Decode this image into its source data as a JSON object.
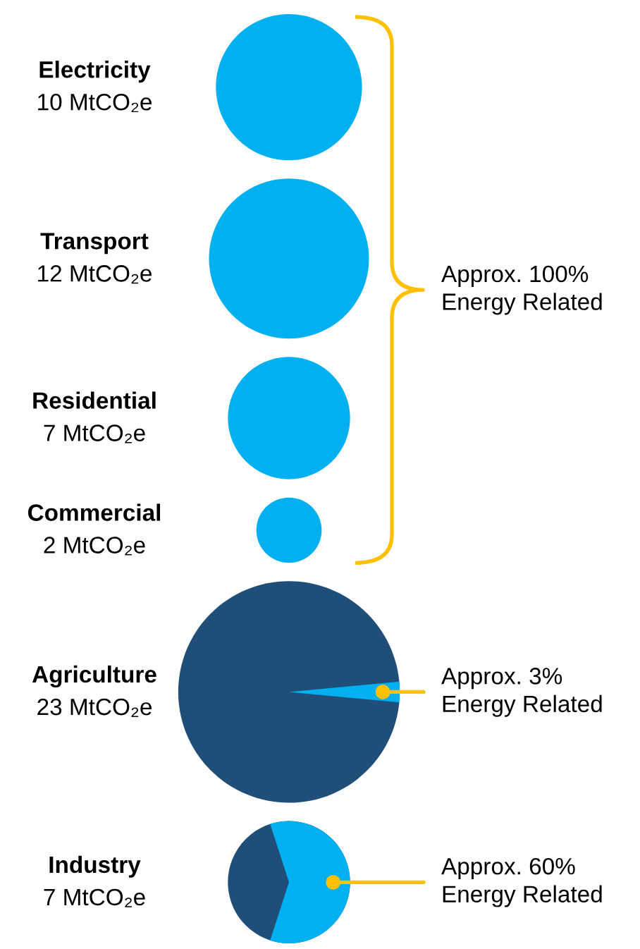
{
  "chart_data": {
    "type": "other",
    "categories": [
      "Electricity",
      "Transport",
      "Residential",
      "Commercial",
      "Agriculture",
      "Industry"
    ],
    "values": [
      10,
      12,
      7,
      2,
      23,
      7
    ],
    "value_labels": [
      "10 MtCO₂e",
      "12 MtCO₂e",
      "7 MtCO₂e",
      "2 MtCO₂e",
      "23 MtCO₂e",
      "7 MtCO₂e"
    ],
    "colors": [
      "#00b0f0",
      "#00b0f0",
      "#00b0f0",
      "#00b0f0",
      "#1f4e79",
      "#1f4e79"
    ],
    "series": [
      {
        "color": "#00b0f0",
        "values": [
          null,
          null,
          null,
          null,
          3,
          60
        ],
        "value_labels": [
          null,
          null,
          null,
          null,
          "Approx. 3%\nEnergy Related",
          "Approx. 60%\nEnergy Related"
        ]
      }
    ],
    "annotations": [
      "Approx. 100%\nEnergy Related"
    ]
  }
}
